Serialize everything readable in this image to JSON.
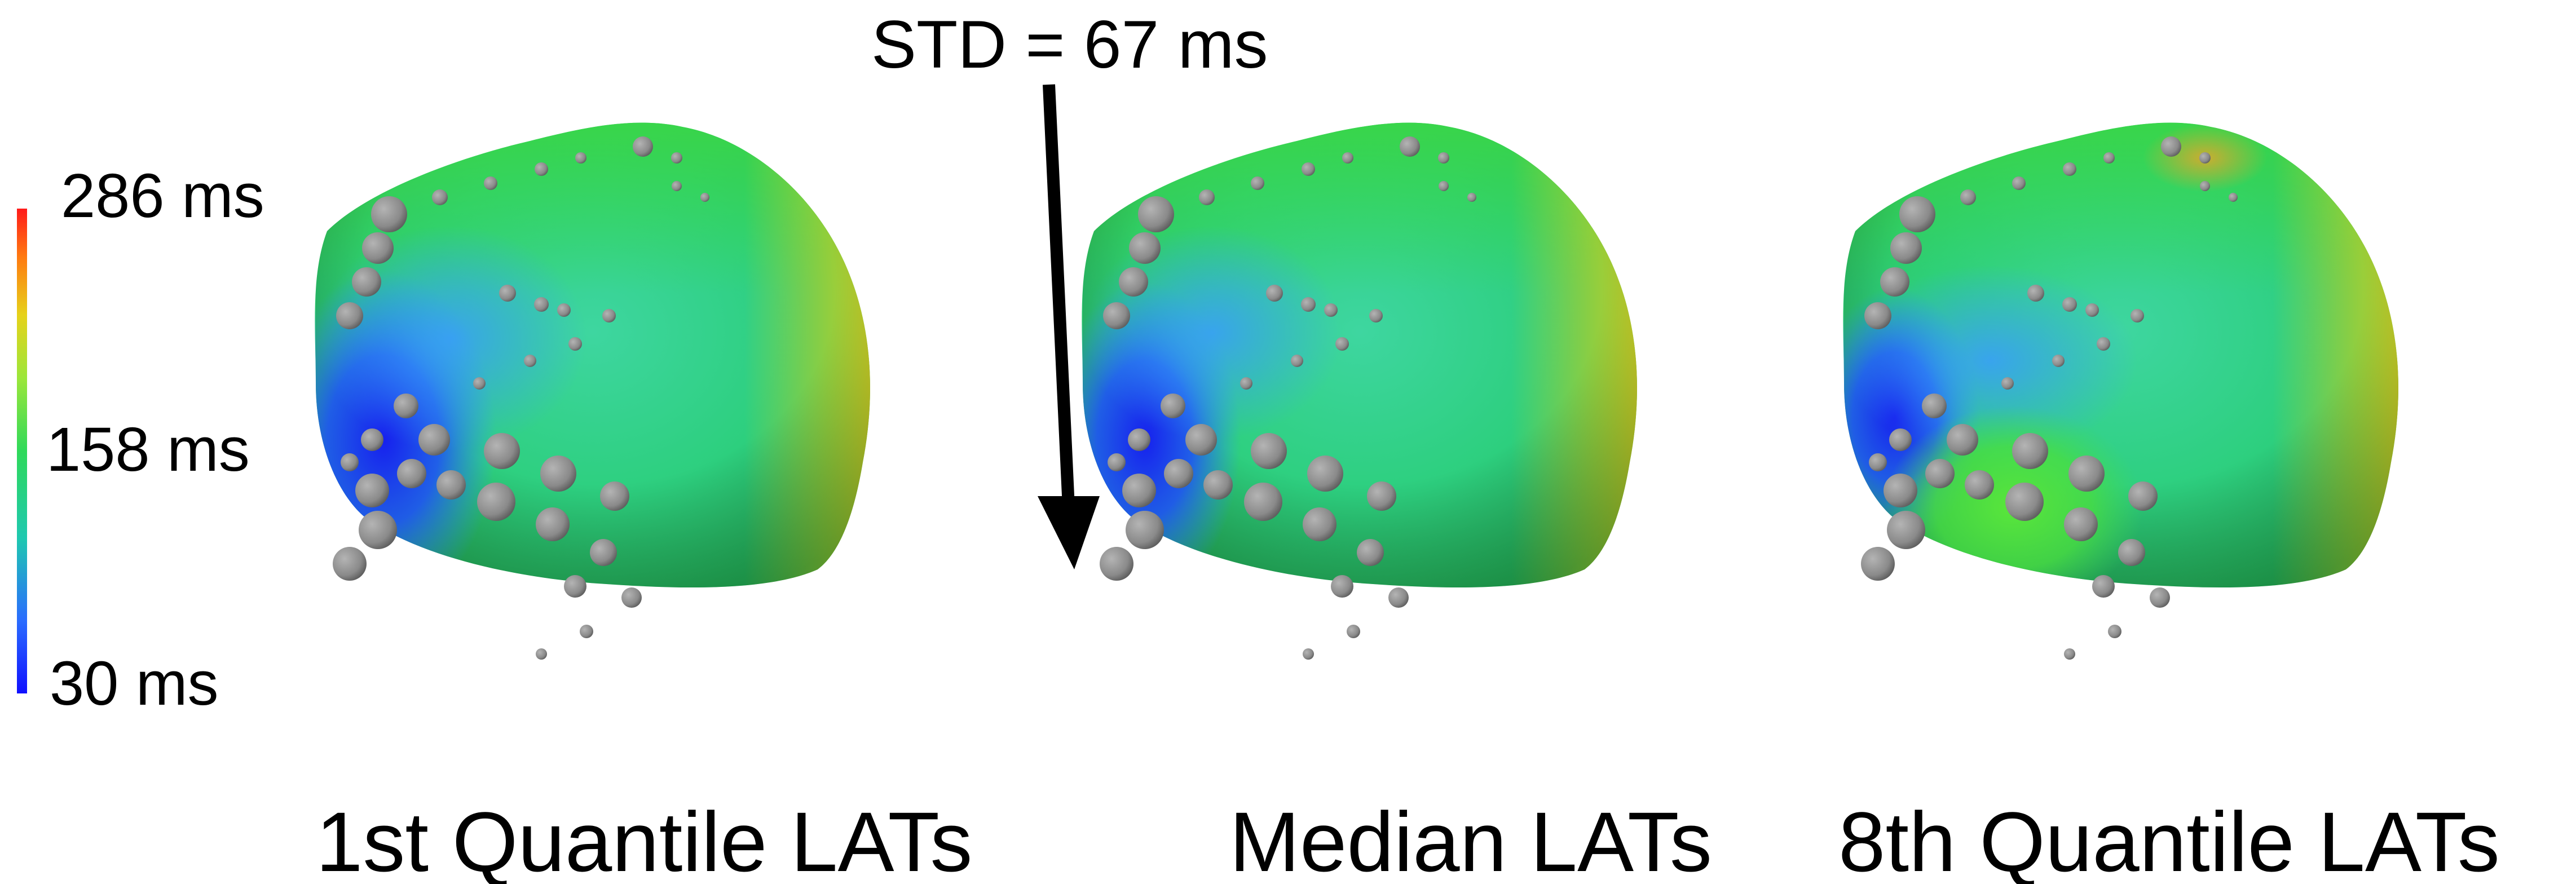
{
  "colorbar": {
    "max_label": "286 ms",
    "mid_label": "158 ms",
    "min_label": "30 ms",
    "colors": [
      "#1010ff",
      "#2a8cff",
      "#1ecfa0",
      "#2fd95a",
      "#8ee63a",
      "#e6d21a",
      "#ff7a10",
      "#ff1a1a"
    ]
  },
  "annotation": {
    "text": "STD = 67 ms"
  },
  "panels": [
    {
      "caption": "1st Quantile LATs",
      "variant": "q1"
    },
    {
      "caption": "Median LATs",
      "variant": "median"
    },
    {
      "caption": "8th Quantile LATs",
      "variant": "q8"
    }
  ],
  "colors": {
    "early": "#1a22ee",
    "mid_early": "#2a8cff",
    "base": "#27cf8c",
    "green": "#35d94f",
    "late": "#c8cf24",
    "electrode": "#8e8e8e"
  }
}
